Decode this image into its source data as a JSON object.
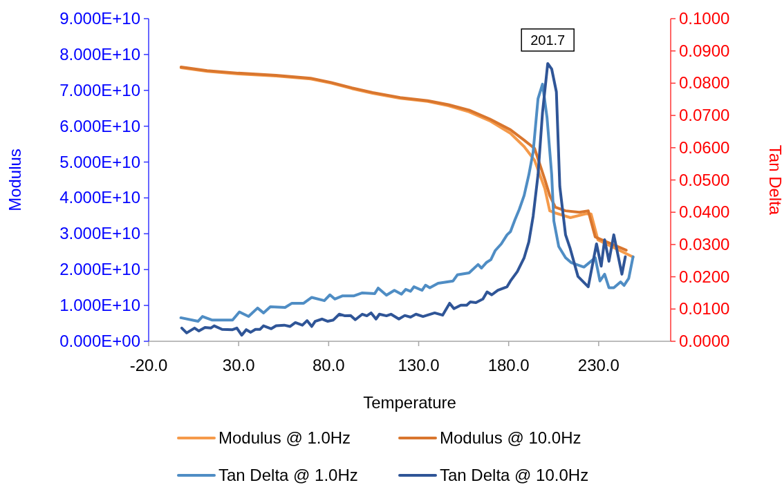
{
  "chart_data": {
    "type": "line",
    "xlabel": "Temperature",
    "ylabel": "Modulus",
    "y2label": "Tan Delta",
    "xlim": [
      -20,
      270
    ],
    "xticks": [
      {
        "value": -20,
        "label": "-20.0"
      },
      {
        "value": 30,
        "label": "30.0"
      },
      {
        "value": 80,
        "label": "80.0"
      },
      {
        "value": 130,
        "label": "130.0"
      },
      {
        "value": 180,
        "label": "180.0"
      },
      {
        "value": 230,
        "label": "230.0"
      }
    ],
    "ylim": [
      0,
      90000000000
    ],
    "yticks": [
      {
        "value": 0,
        "label": "0.000E+00"
      },
      {
        "value": 10000000000,
        "label": "1.000E+10"
      },
      {
        "value": 20000000000,
        "label": "2.000E+10"
      },
      {
        "value": 30000000000,
        "label": "3.000E+10"
      },
      {
        "value": 40000000000,
        "label": "4.000E+10"
      },
      {
        "value": 50000000000,
        "label": "5.000E+10"
      },
      {
        "value": 60000000000,
        "label": "6.000E+10"
      },
      {
        "value": 70000000000,
        "label": "7.000E+10"
      },
      {
        "value": 80000000000,
        "label": "8.000E+10"
      },
      {
        "value": 90000000000,
        "label": "9.000E+10"
      }
    ],
    "y2lim": [
      0,
      0.1
    ],
    "y2ticks": [
      {
        "value": 0,
        "label": "0.0000"
      },
      {
        "value": 0.01,
        "label": "0.0100"
      },
      {
        "value": 0.02,
        "label": "0.0200"
      },
      {
        "value": 0.03,
        "label": "0.0300"
      },
      {
        "value": 0.04,
        "label": "0.0400"
      },
      {
        "value": 0.05,
        "label": "0.0500"
      },
      {
        "value": 0.06,
        "label": "0.0600"
      },
      {
        "value": 0.07,
        "label": "0.0700"
      },
      {
        "value": 0.08,
        "label": "0.0800"
      },
      {
        "value": 0.09,
        "label": "0.0900"
      },
      {
        "value": 0.1,
        "label": "0.1000"
      }
    ],
    "grid": false,
    "legend": "bottom",
    "marker": "none",
    "line_style": "solid",
    "annotations": [
      "201.7"
    ],
    "series": [
      {
        "name": "Modulus @ 1.0Hz",
        "color": "#f59a4a",
        "x": [
          -2.0,
          12.5,
          29.8,
          50.8,
          70.0,
          81.4,
          92.9,
          104.4,
          119.7,
          135.0,
          146.5,
          158.0,
          169.5,
          181.0,
          188.6,
          194.4,
          200.1,
          202.8,
          205.9,
          214.3,
          223.1,
          225.8,
          229.6,
          249.1
        ],
        "values": [
          76300000000,
          75300000000,
          74600000000,
          74000000000,
          73200000000,
          72000000000,
          70500000000,
          69200000000,
          67800000000,
          66900000000,
          65700000000,
          64000000000,
          61500000000,
          58000000000,
          54300000000,
          50500000000,
          42600000000,
          36400000000,
          35800000000,
          34500000000,
          35600000000,
          35500000000,
          28300000000,
          23500000000
        ]
      },
      {
        "name": "Modulus @ 10.0Hz",
        "color": "#d9762e",
        "x": [
          -2.0,
          12.5,
          29.8,
          50.8,
          70.0,
          81.4,
          92.9,
          104.4,
          119.7,
          135.0,
          146.5,
          158.0,
          169.5,
          181.0,
          188.6,
          194.4,
          200.1,
          202.8,
          205.9,
          211.6,
          219.3,
          224.2,
          228.1,
          245.3
        ],
        "values": [
          76500000000,
          75500000000,
          74800000000,
          74200000000,
          73400000000,
          72200000000,
          70700000000,
          69400000000,
          68000000000,
          67100000000,
          66000000000,
          64500000000,
          62000000000,
          59000000000,
          56100000000,
          53800000000,
          45100000000,
          40700000000,
          37400000000,
          36400000000,
          36000000000,
          36400000000,
          29100000000,
          25400000000
        ]
      },
      {
        "name": "Tan Delta @ 1.0Hz",
        "color": "#4f8dc4",
        "axis": "y2",
        "x": [
          -2.1,
          7.4,
          9.9,
          15.1,
          26.6,
          30.4,
          35.5,
          40.5,
          43.8,
          47.6,
          55.8,
          59.6,
          66.1,
          70.6,
          77.6,
          80.7,
          83.4,
          87.8,
          94.1,
          98.7,
          105.6,
          107.5,
          112.1,
          116.5,
          120.4,
          122.8,
          125.5,
          127.4,
          131.9,
          133.8,
          136.2,
          140.8,
          149.1,
          151.5,
          158.0,
          163.0,
          164.9,
          167.6,
          170.1,
          172.5,
          175.9,
          179.1,
          181.0,
          183.5,
          185.9,
          188.6,
          191.2,
          193.6,
          196.3,
          198.8,
          201.3,
          203.9,
          205.1,
          207.8,
          211.6,
          214.7,
          221.8,
          228.1,
          230.7,
          233.3,
          235.7,
          238.4,
          242.2,
          244.1,
          246.7,
          249.1
        ],
        "values": [
          0.0073,
          0.0062,
          0.0077,
          0.0066,
          0.0066,
          0.0091,
          0.0077,
          0.0103,
          0.0088,
          0.0107,
          0.0105,
          0.0118,
          0.0118,
          0.0136,
          0.0126,
          0.0144,
          0.0131,
          0.0141,
          0.0141,
          0.015,
          0.0148,
          0.0165,
          0.0143,
          0.0158,
          0.0146,
          0.0161,
          0.0155,
          0.0169,
          0.0158,
          0.0174,
          0.0166,
          0.018,
          0.0187,
          0.0206,
          0.0212,
          0.0238,
          0.0227,
          0.0244,
          0.0253,
          0.0281,
          0.0302,
          0.033,
          0.034,
          0.0377,
          0.0409,
          0.0452,
          0.0516,
          0.0587,
          0.0752,
          0.0797,
          0.0694,
          0.0516,
          0.0373,
          0.0294,
          0.0259,
          0.0244,
          0.023,
          0.0259,
          0.0187,
          0.0208,
          0.0166,
          0.0166,
          0.0184,
          0.0173,
          0.0195,
          0.0262
        ]
      },
      {
        "name": "Tan Delta @ 10.0Hz",
        "color": "#2f5597",
        "axis": "y2",
        "x": [
          -1.6,
          1.1,
          5.5,
          7.9,
          11.3,
          14.5,
          16.4,
          20.8,
          26.6,
          29.0,
          31.7,
          34.2,
          36.7,
          39.3,
          41.9,
          43.8,
          48.1,
          50.8,
          55.3,
          58.5,
          61.5,
          65.4,
          68.0,
          70.6,
          72.5,
          76.4,
          79.5,
          82.6,
          85.9,
          89.1,
          92.2,
          94.8,
          98.7,
          101.2,
          103.6,
          106.3,
          108.2,
          112.1,
          114.6,
          119.0,
          122.3,
          125.5,
          128.5,
          132.4,
          138.9,
          143.3,
          147.2,
          149.6,
          153.4,
          156.7,
          158.7,
          161.8,
          165.7,
          168.0,
          170.6,
          174.0,
          179.1,
          181.0,
          184.8,
          188.6,
          191.2,
          193.6,
          196.3,
          198.8,
          201.7,
          203.9,
          206.5,
          208.4,
          211.6,
          214.2,
          218.5,
          224.2,
          228.8,
          231.4,
          233.3,
          235.7,
          238.4,
          242.9,
          244.8
        ],
        "values": [
          0.0041,
          0.0026,
          0.0041,
          0.0032,
          0.0043,
          0.0041,
          0.0048,
          0.0037,
          0.0036,
          0.0041,
          0.0019,
          0.0036,
          0.0028,
          0.0037,
          0.0037,
          0.0048,
          0.0039,
          0.0048,
          0.005,
          0.0046,
          0.0058,
          0.005,
          0.0064,
          0.0046,
          0.0062,
          0.0069,
          0.0062,
          0.0066,
          0.0084,
          0.0079,
          0.008,
          0.0067,
          0.0084,
          0.0079,
          0.0088,
          0.0069,
          0.0084,
          0.0079,
          0.0084,
          0.0069,
          0.008,
          0.0075,
          0.0084,
          0.0077,
          0.0088,
          0.0081,
          0.0118,
          0.0101,
          0.0112,
          0.0112,
          0.0122,
          0.012,
          0.0131,
          0.0153,
          0.0144,
          0.0158,
          0.0169,
          0.0187,
          0.0216,
          0.0259,
          0.0308,
          0.0388,
          0.0516,
          0.0709,
          0.0861,
          0.0844,
          0.0773,
          0.048,
          0.033,
          0.0287,
          0.0201,
          0.0169,
          0.0302,
          0.0233,
          0.0315,
          0.0248,
          0.033,
          0.0208,
          0.0262
        ]
      }
    ]
  }
}
